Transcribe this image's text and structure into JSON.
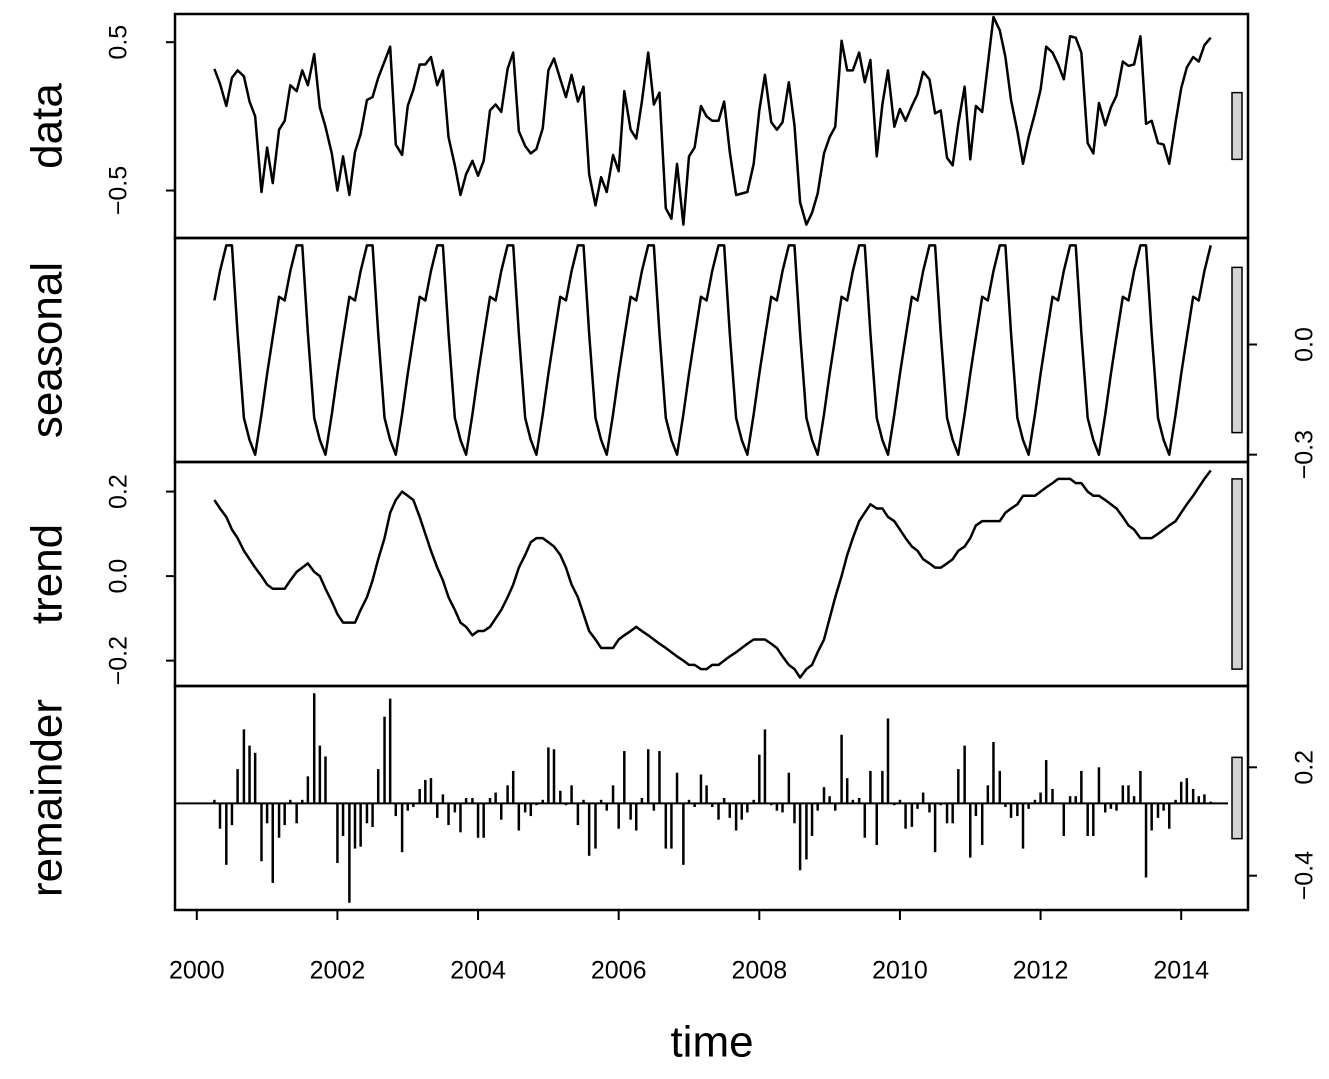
{
  "chart_data": {
    "type": "decomposition",
    "xlabel": "time",
    "xlim": [
      1999.69,
      2014.95
    ],
    "xticks": [
      2000,
      2002,
      2004,
      2006,
      2008,
      2010,
      2012,
      2014
    ],
    "range_bar": 0.45,
    "range_bar_color": "#d3d3d3",
    "x": [
      2000.25,
      2000.33,
      2000.42,
      2000.5,
      2000.58,
      2000.67,
      2000.75,
      2000.83,
      2000.92,
      2001,
      2001.08,
      2001.17,
      2001.25,
      2001.33,
      2001.42,
      2001.5,
      2001.58,
      2001.67,
      2001.75,
      2001.83,
      2001.92,
      2002,
      2002.08,
      2002.17,
      2002.25,
      2002.33,
      2002.42,
      2002.5,
      2002.58,
      2002.67,
      2002.75,
      2002.83,
      2002.92,
      2003,
      2003.08,
      2003.17,
      2003.25,
      2003.33,
      2003.42,
      2003.5,
      2003.58,
      2003.67,
      2003.75,
      2003.83,
      2003.92,
      2004,
      2004.08,
      2004.17,
      2004.25,
      2004.33,
      2004.42,
      2004.5,
      2004.58,
      2004.67,
      2004.75,
      2004.83,
      2004.92,
      2005,
      2005.08,
      2005.17,
      2005.25,
      2005.33,
      2005.42,
      2005.5,
      2005.58,
      2005.67,
      2005.75,
      2005.83,
      2005.92,
      2006,
      2006.08,
      2006.17,
      2006.25,
      2006.33,
      2006.42,
      2006.5,
      2006.58,
      2006.67,
      2006.75,
      2006.83,
      2006.92,
      2007,
      2007.08,
      2007.17,
      2007.25,
      2007.33,
      2007.42,
      2007.5,
      2007.58,
      2007.67,
      2007.75,
      2007.83,
      2007.92,
      2008,
      2008.08,
      2008.17,
      2008.25,
      2008.33,
      2008.42,
      2008.5,
      2008.58,
      2008.67,
      2008.75,
      2008.83,
      2008.92,
      2009,
      2009.08,
      2009.17,
      2009.25,
      2009.33,
      2009.42,
      2009.5,
      2009.58,
      2009.67,
      2009.75,
      2009.83,
      2009.92,
      2010,
      2010.08,
      2010.17,
      2010.25,
      2010.33,
      2010.42,
      2010.5,
      2010.58,
      2010.67,
      2010.75,
      2010.83,
      2010.92,
      2011,
      2011.08,
      2011.17,
      2011.25,
      2011.33,
      2011.42,
      2011.5,
      2011.58,
      2011.67,
      2011.75,
      2011.83,
      2011.92,
      2012,
      2012.08,
      2012.17,
      2012.25,
      2012.33,
      2012.42,
      2012.5,
      2012.58,
      2012.67,
      2012.75,
      2012.83,
      2012.92,
      2013,
      2013.08,
      2013.17,
      2013.25,
      2013.33,
      2013.42,
      2013.5,
      2013.58,
      2013.67,
      2013.75,
      2013.83,
      2013.92,
      2014,
      2014.08,
      2014.17,
      2014.25,
      2014.33,
      2014.42
    ],
    "series": [
      {
        "name": "data",
        "type": "line",
        "color": "#000000",
        "axis": "left",
        "ylim": [
          -0.82,
          0.69
        ],
        "yticks": [
          {
            "value": -0.5,
            "label": "−0.5"
          },
          0.5
        ],
        "values": [
          0.32,
          0.22,
          0.07,
          0.26,
          0.31,
          0.27,
          0.1,
          0,
          -0.51,
          -0.21,
          -0.45,
          -0.09,
          -0.03,
          0.21,
          0.17,
          0.31,
          0.21,
          0.42,
          0.06,
          -0.07,
          -0.25,
          -0.5,
          -0.27,
          -0.53,
          -0.24,
          -0.12,
          0.11,
          0.13,
          0.26,
          0.37,
          0.47,
          -0.19,
          -0.26,
          0.07,
          0.18,
          0.35,
          0.35,
          0.4,
          0.21,
          0.31,
          -0.14,
          -0.33,
          -0.53,
          -0.39,
          -0.3,
          -0.4,
          -0.3,
          0.04,
          0.08,
          0.03,
          0.32,
          0.43,
          -0.1,
          -0.2,
          -0.25,
          -0.22,
          -0.08,
          0.31,
          0.39,
          0.25,
          0.13,
          0.28,
          0.1,
          0.2,
          -0.39,
          -0.6,
          -0.41,
          -0.51,
          -0.26,
          -0.37,
          0.17,
          -0.09,
          -0.15,
          0.1,
          0.43,
          0.08,
          0.16,
          -0.62,
          -0.69,
          -0.32,
          -0.73,
          -0.27,
          -0.21,
          0.07,
          0,
          -0.03,
          -0.03,
          0.1,
          -0.24,
          -0.53,
          -0.52,
          -0.51,
          -0.32,
          0.04,
          0.28,
          -0.04,
          -0.09,
          -0.04,
          0.23,
          -0.06,
          -0.58,
          -0.73,
          -0.65,
          -0.52,
          -0.25,
          -0.14,
          -0.07,
          0.51,
          0.31,
          0.31,
          0.43,
          0.23,
          0.38,
          -0.27,
          0.08,
          0.31,
          -0.07,
          0.05,
          -0.03,
          0.07,
          0.15,
          0.3,
          0.25,
          0.02,
          0.04,
          -0.28,
          -0.33,
          -0.05,
          0.2,
          -0.29,
          0.07,
          0.03,
          0.35,
          0.67,
          0.58,
          0.4,
          0.11,
          -0.1,
          -0.32,
          -0.14,
          0.02,
          0.18,
          0.47,
          0.43,
          0.35,
          0.25,
          0.54,
          0.53,
          0.43,
          -0.18,
          -0.25,
          0.09,
          -0.06,
          0.06,
          0.14,
          0.37,
          0.34,
          0.35,
          0.54,
          -0.05,
          -0.03,
          -0.18,
          -0.19,
          -0.32,
          -0.04,
          0.19,
          0.33,
          0.4,
          0.37,
          0.48,
          0.53
        ]
      },
      {
        "name": "seasonal",
        "type": "line",
        "color": "#000000",
        "axis": "right",
        "ylim": [
          -0.32,
          0.29
        ],
        "yticks": [
          {
            "value": -0.3,
            "label": "−0.3"
          },
          {
            "value": 0,
            "label": "0.0"
          }
        ],
        "values": [
          0.12,
          0.2,
          0.27,
          0.27,
          0.03,
          -0.2,
          -0.26,
          -0.3,
          -0.19,
          -0.08,
          0.02,
          0.13,
          0.12,
          0.2,
          0.27,
          0.27,
          0.03,
          -0.2,
          -0.26,
          -0.3,
          -0.19,
          -0.08,
          0.02,
          0.13,
          0.12,
          0.2,
          0.27,
          0.27,
          0.03,
          -0.2,
          -0.26,
          -0.3,
          -0.19,
          -0.08,
          0.02,
          0.13,
          0.12,
          0.2,
          0.27,
          0.27,
          0.03,
          -0.2,
          -0.26,
          -0.3,
          -0.19,
          -0.08,
          0.02,
          0.13,
          0.12,
          0.2,
          0.27,
          0.27,
          0.03,
          -0.2,
          -0.26,
          -0.3,
          -0.19,
          -0.08,
          0.02,
          0.13,
          0.12,
          0.2,
          0.27,
          0.27,
          0.03,
          -0.2,
          -0.26,
          -0.3,
          -0.19,
          -0.08,
          0.02,
          0.13,
          0.12,
          0.2,
          0.27,
          0.27,
          0.03,
          -0.2,
          -0.26,
          -0.3,
          -0.19,
          -0.08,
          0.02,
          0.13,
          0.12,
          0.2,
          0.27,
          0.27,
          0.03,
          -0.2,
          -0.26,
          -0.3,
          -0.19,
          -0.08,
          0.02,
          0.13,
          0.12,
          0.2,
          0.27,
          0.27,
          0.03,
          -0.2,
          -0.26,
          -0.3,
          -0.19,
          -0.08,
          0.02,
          0.13,
          0.12,
          0.2,
          0.27,
          0.27,
          0.03,
          -0.2,
          -0.26,
          -0.3,
          -0.19,
          -0.08,
          0.02,
          0.13,
          0.12,
          0.2,
          0.27,
          0.27,
          0.03,
          -0.2,
          -0.26,
          -0.3,
          -0.19,
          -0.08,
          0.02,
          0.13,
          0.12,
          0.2,
          0.27,
          0.27,
          0.03,
          -0.2,
          -0.26,
          -0.3,
          -0.19,
          -0.08,
          0.02,
          0.13,
          0.12,
          0.2,
          0.27,
          0.27,
          0.03,
          -0.2,
          -0.26,
          -0.3,
          -0.19,
          -0.08,
          0.02,
          0.13,
          0.12,
          0.2,
          0.27,
          0.27,
          0.03,
          -0.2,
          -0.26,
          -0.3,
          -0.19,
          -0.08,
          0.02,
          0.13,
          0.12,
          0.2,
          0.27
        ]
      },
      {
        "name": "trend",
        "type": "line",
        "color": "#000000",
        "axis": "left",
        "ylim": [
          -0.26,
          0.27
        ],
        "yticks": [
          {
            "value": -0.2,
            "label": "−0.2"
          },
          {
            "value": 0,
            "label": "0.0"
          },
          0.2
        ],
        "values": [
          0.18,
          0.16,
          0.14,
          0.11,
          0.09,
          0.06,
          0.04,
          0.02,
          0,
          -0.02,
          -0.03,
          -0.03,
          -0.03,
          -0.01,
          0.01,
          0.02,
          0.03,
          0.01,
          0,
          -0.03,
          -0.06,
          -0.09,
          -0.11,
          -0.11,
          -0.11,
          -0.08,
          -0.05,
          -0.01,
          0.04,
          0.09,
          0.15,
          0.18,
          0.2,
          0.19,
          0.18,
          0.14,
          0.1,
          0.06,
          0.02,
          -0.01,
          -0.05,
          -0.08,
          -0.11,
          -0.12,
          -0.14,
          -0.13,
          -0.13,
          -0.12,
          -0.1,
          -0.08,
          -0.05,
          -0.02,
          0.02,
          0.05,
          0.08,
          0.09,
          0.09,
          0.08,
          0.07,
          0.05,
          0.02,
          -0.02,
          -0.05,
          -0.09,
          -0.13,
          -0.15,
          -0.17,
          -0.17,
          -0.17,
          -0.15,
          -0.14,
          -0.13,
          -0.12,
          -0.13,
          -0.14,
          -0.15,
          -0.16,
          -0.17,
          -0.18,
          -0.19,
          -0.2,
          -0.21,
          -0.21,
          -0.22,
          -0.22,
          -0.21,
          -0.21,
          -0.2,
          -0.19,
          -0.18,
          -0.17,
          -0.16,
          -0.15,
          -0.15,
          -0.15,
          -0.16,
          -0.17,
          -0.19,
          -0.21,
          -0.22,
          -0.24,
          -0.22,
          -0.21,
          -0.18,
          -0.15,
          -0.1,
          -0.05,
          0,
          0.05,
          0.09,
          0.13,
          0.15,
          0.17,
          0.16,
          0.16,
          0.14,
          0.13,
          0.11,
          0.09,
          0.07,
          0.06,
          0.04,
          0.03,
          0.02,
          0.02,
          0.03,
          0.04,
          0.06,
          0.07,
          0.09,
          0.12,
          0.13,
          0.13,
          0.13,
          0.13,
          0.15,
          0.16,
          0.17,
          0.19,
          0.19,
          0.19,
          0.2,
          0.21,
          0.22,
          0.23,
          0.23,
          0.23,
          0.22,
          0.22,
          0.2,
          0.19,
          0.19,
          0.18,
          0.17,
          0.16,
          0.14,
          0.12,
          0.11,
          0.09,
          0.09,
          0.09,
          0.1,
          0.11,
          0.12,
          0.13,
          0.15,
          0.17,
          0.19,
          0.21,
          0.23,
          0.25
        ]
      },
      {
        "name": "remainder",
        "type": "bar",
        "color": "#000000",
        "axis": "right",
        "ylim": [
          -0.59,
          0.65
        ],
        "yticks": [
          {
            "value": -0.4,
            "label": "−0.4"
          },
          0.2
        ],
        "values": [
          0.02,
          -0.14,
          -0.34,
          -0.12,
          0.19,
          0.41,
          0.32,
          0.28,
          -0.32,
          -0.11,
          -0.44,
          -0.19,
          -0.12,
          0.02,
          -0.11,
          0.02,
          0.15,
          0.61,
          0.32,
          0.26,
          0,
          -0.33,
          -0.18,
          -0.55,
          -0.25,
          -0.24,
          -0.11,
          -0.13,
          0.19,
          0.48,
          0.58,
          -0.07,
          -0.27,
          -0.04,
          -0.02,
          0.08,
          0.13,
          0.14,
          -0.08,
          0.05,
          -0.12,
          -0.05,
          -0.16,
          0.03,
          0.03,
          -0.19,
          -0.19,
          0.03,
          0.06,
          -0.09,
          0.1,
          0.18,
          -0.15,
          -0.05,
          -0.07,
          -0.01,
          0.02,
          0.31,
          0.3,
          0.07,
          -0.01,
          0.1,
          -0.12,
          0.02,
          -0.29,
          -0.25,
          0.02,
          -0.04,
          0.1,
          -0.14,
          0.29,
          -0.09,
          -0.15,
          0.03,
          0.3,
          -0.04,
          0.29,
          -0.25,
          -0.25,
          0.17,
          -0.34,
          0.02,
          -0.02,
          0.16,
          0.1,
          -0.02,
          -0.09,
          0.03,
          -0.08,
          -0.15,
          -0.09,
          -0.05,
          0.02,
          0.27,
          0.41,
          -0.01,
          -0.04,
          -0.05,
          0.17,
          -0.11,
          -0.37,
          -0.31,
          -0.18,
          -0.04,
          0.09,
          0.04,
          -0.04,
          0.38,
          0.14,
          0.02,
          0.03,
          -0.19,
          0.18,
          -0.23,
          0.18,
          0.47,
          -0.01,
          0.02,
          -0.14,
          -0.13,
          -0.03,
          0.06,
          -0.05,
          -0.27,
          -0.01,
          -0.11,
          -0.11,
          0.19,
          0.32,
          -0.3,
          -0.07,
          -0.23,
          0.1,
          0.34,
          0.18,
          -0.02,
          -0.08,
          -0.07,
          -0.25,
          -0.03,
          0.02,
          0.06,
          0.24,
          0.08,
          0,
          -0.18,
          0.04,
          0.04,
          0.18,
          -0.18,
          -0.18,
          0.2,
          -0.05,
          -0.03,
          -0.04,
          0.1,
          0.1,
          0.04,
          0.18,
          -0.41,
          -0.15,
          -0.08,
          -0.04,
          -0.14,
          0.02,
          0.12,
          0.14,
          0.08,
          0.04,
          0.05,
          0.01
        ]
      }
    ]
  }
}
